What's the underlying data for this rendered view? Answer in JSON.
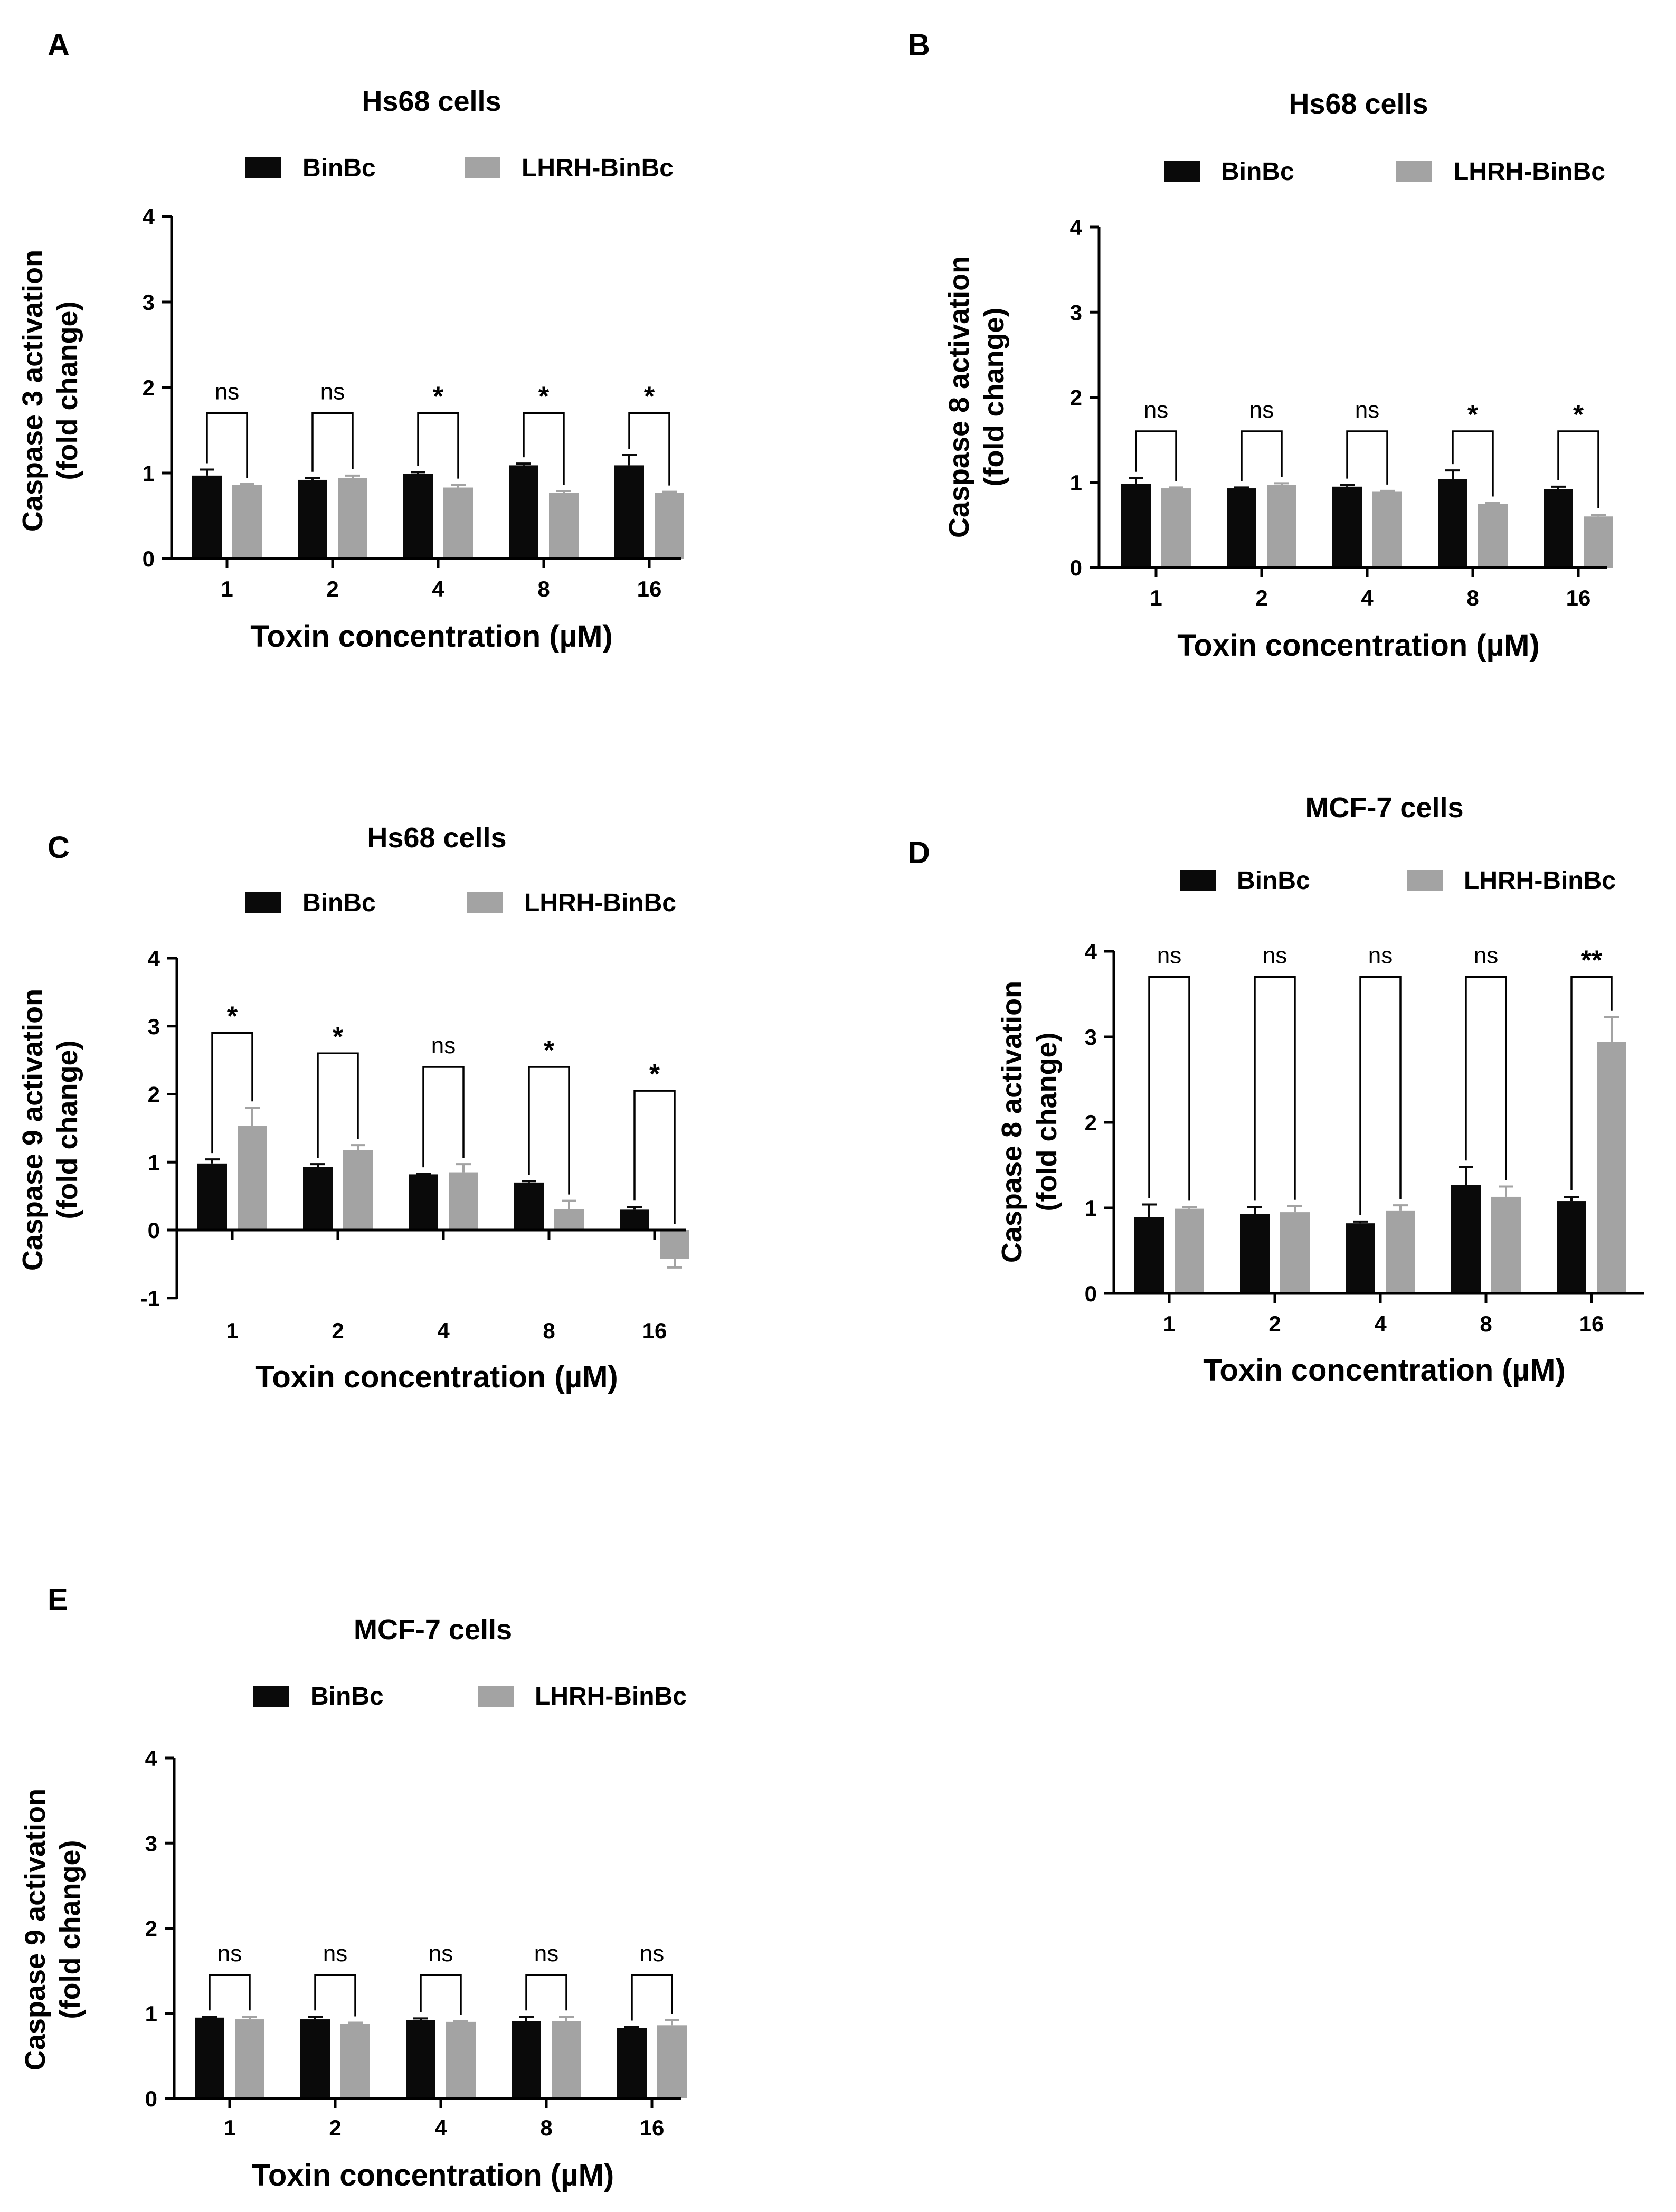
{
  "legend": {
    "series1": "BinBc",
    "series2": "LHRH-BinBc"
  },
  "colors": {
    "series1": "#0a0a0a",
    "series2": "#a3a3a3",
    "axis": "#000000"
  },
  "chart_data": [
    {
      "panel": "A",
      "type": "bar",
      "title": "Hs68 cells",
      "xlabel": "Toxin concentration (µM)",
      "ylabel": [
        "Caspase 3 activation",
        "(fold change)"
      ],
      "ylim": [
        0,
        4
      ],
      "yticks": [
        0,
        1,
        2,
        3,
        4
      ],
      "categories": [
        "1",
        "2",
        "4",
        "8",
        "16"
      ],
      "series": [
        {
          "name": "BinBc",
          "values": [
            0.97,
            0.92,
            0.99,
            1.09,
            1.09
          ],
          "errors": [
            0.07,
            0.02,
            0.02,
            0.02,
            0.12
          ]
        },
        {
          "name": "LHRH-BinBc",
          "values": [
            0.86,
            0.94,
            0.83,
            0.77,
            0.77
          ],
          "errors": [
            0.01,
            0.03,
            0.03,
            0.02,
            0.01
          ]
        }
      ],
      "significance": [
        "ns",
        "ns",
        "*",
        "*",
        "*"
      ],
      "sigLevels": [
        1.7,
        1.7,
        1.7,
        1.7,
        1.7
      ]
    },
    {
      "panel": "B",
      "type": "bar",
      "title": "Hs68 cells",
      "xlabel": "Toxin concentration (µM)",
      "ylabel": [
        "Caspase 8 activation",
        "(fold change)"
      ],
      "ylim": [
        0,
        4
      ],
      "yticks": [
        0,
        1,
        2,
        3,
        4
      ],
      "categories": [
        "1",
        "2",
        "4",
        "8",
        "16"
      ],
      "series": [
        {
          "name": "BinBc",
          "values": [
            0.98,
            0.93,
            0.95,
            1.04,
            0.92
          ],
          "errors": [
            0.07,
            0.01,
            0.02,
            0.1,
            0.03
          ]
        },
        {
          "name": "LHRH-BinBc",
          "values": [
            0.93,
            0.97,
            0.89,
            0.75,
            0.6
          ],
          "errors": [
            0.01,
            0.02,
            0.01,
            0.01,
            0.02
          ]
        }
      ],
      "significance": [
        "ns",
        "ns",
        "ns",
        "*",
        "*"
      ],
      "sigLevels": [
        1.6,
        1.6,
        1.6,
        1.6,
        1.6
      ]
    },
    {
      "panel": "C",
      "type": "bar",
      "title": "Hs68 cells",
      "xlabel": "Toxin concentration (µM)",
      "ylabel": [
        "Caspase 9 activation",
        "(fold change)"
      ],
      "ylim": [
        -1,
        4
      ],
      "yticks": [
        -1,
        0,
        1,
        2,
        3,
        4
      ],
      "categories": [
        "1",
        "2",
        "4",
        "8",
        "16"
      ],
      "series": [
        {
          "name": "BinBc",
          "values": [
            0.98,
            0.93,
            0.82,
            0.7,
            0.3
          ],
          "errors": [
            0.06,
            0.04,
            0.01,
            0.02,
            0.04
          ]
        },
        {
          "name": "LHRH-BinBc",
          "values": [
            1.53,
            1.18,
            0.85,
            0.31,
            -0.42
          ],
          "errors": [
            0.27,
            0.07,
            0.12,
            0.12,
            0.13
          ]
        }
      ],
      "significance": [
        "*",
        "*",
        "ns",
        "*",
        "*"
      ],
      "sigLevels": [
        2.9,
        2.6,
        2.4,
        2.4,
        2.05
      ]
    },
    {
      "panel": "D",
      "type": "bar",
      "title": "MCF-7 cells",
      "xlabel": "Toxin concentration (µM)",
      "ylabel": [
        "Caspase 8 activation",
        "(fold change)"
      ],
      "ylim": [
        0,
        4
      ],
      "yticks": [
        0,
        1,
        2,
        3,
        4
      ],
      "categories": [
        "1",
        "2",
        "4",
        "8",
        "16"
      ],
      "series": [
        {
          "name": "BinBc",
          "values": [
            0.89,
            0.93,
            0.82,
            1.27,
            1.08
          ],
          "errors": [
            0.15,
            0.08,
            0.02,
            0.21,
            0.05
          ]
        },
        {
          "name": "LHRH-BinBc",
          "values": [
            0.99,
            0.95,
            0.97,
            1.13,
            2.94
          ],
          "errors": [
            0.02,
            0.07,
            0.06,
            0.12,
            0.29
          ]
        }
      ],
      "significance": [
        "ns",
        "ns",
        "ns",
        "ns",
        "**"
      ],
      "sigLevels": [
        3.7,
        3.7,
        3.7,
        3.7,
        3.7
      ]
    },
    {
      "panel": "E",
      "type": "bar",
      "title": "MCF-7 cells",
      "xlabel": "Toxin concentration (µM)",
      "ylabel": [
        "Caspase 9 activation",
        "(fold change)"
      ],
      "ylim": [
        0,
        4
      ],
      "yticks": [
        0,
        1,
        2,
        3,
        4
      ],
      "categories": [
        "1",
        "2",
        "4",
        "8",
        "16"
      ],
      "series": [
        {
          "name": "BinBc",
          "values": [
            0.95,
            0.93,
            0.92,
            0.91,
            0.83
          ],
          "errors": [
            0.01,
            0.03,
            0.02,
            0.05,
            0.01
          ]
        },
        {
          "name": "LHRH-BinBc",
          "values": [
            0.93,
            0.88,
            0.9,
            0.91,
            0.86
          ],
          "errors": [
            0.03,
            0.01,
            0.01,
            0.05,
            0.06
          ]
        }
      ],
      "significance": [
        "ns",
        "ns",
        "ns",
        "ns",
        "ns"
      ],
      "sigLevels": [
        1.45,
        1.45,
        1.45,
        1.45,
        1.45
      ]
    }
  ]
}
